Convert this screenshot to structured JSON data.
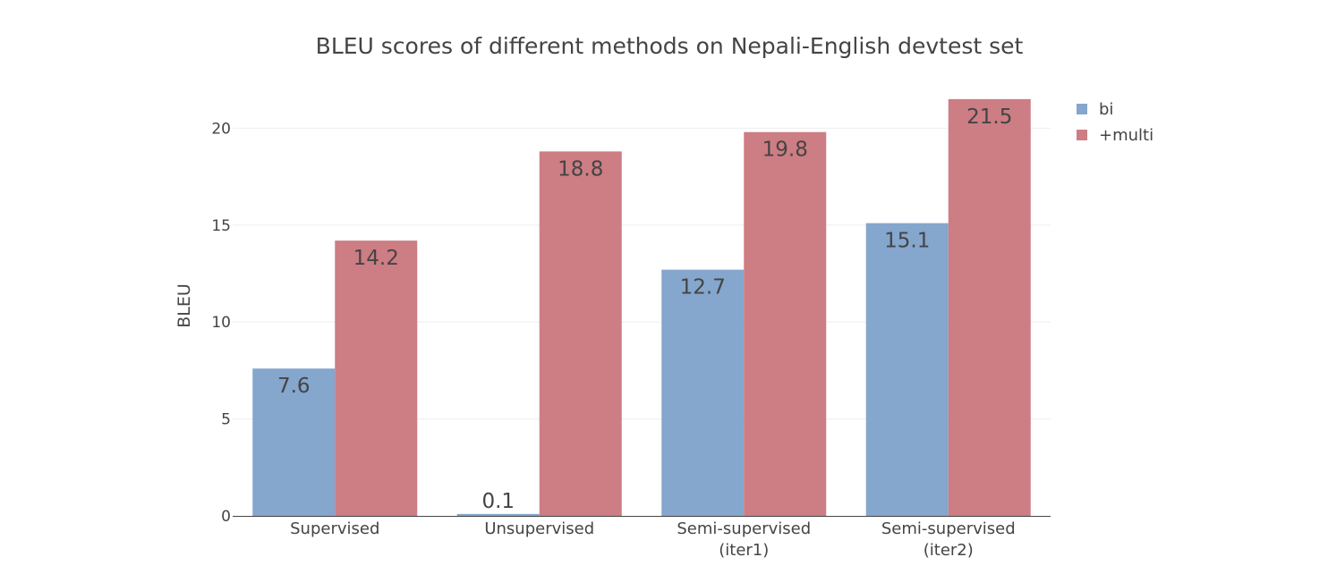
{
  "chart_data": {
    "type": "bar",
    "title": "BLEU scores of different methods on Nepali-English devtest set",
    "xlabel": "",
    "ylabel": "BLEU",
    "ylim": [
      0,
      22
    ],
    "yticks": [
      0,
      5,
      10,
      15,
      20
    ],
    "grid": true,
    "legend_position": "top-right",
    "categories": [
      [
        "Supervised"
      ],
      [
        "Unsupervised"
      ],
      [
        "Semi-supervised",
        "(iter1)"
      ],
      [
        "Semi-supervised",
        "(iter2)"
      ]
    ],
    "series": [
      {
        "name": "bi",
        "color": "#85a6cd",
        "values": [
          7.6,
          0.1,
          12.7,
          15.1
        ]
      },
      {
        "name": "+multi",
        "color": "#cd7d84",
        "values": [
          14.2,
          18.8,
          19.8,
          21.5
        ]
      }
    ],
    "data_labels": [
      [
        "7.6",
        "0.1",
        "12.7",
        "15.1"
      ],
      [
        "14.2",
        "18.8",
        "19.8",
        "21.5"
      ]
    ]
  }
}
